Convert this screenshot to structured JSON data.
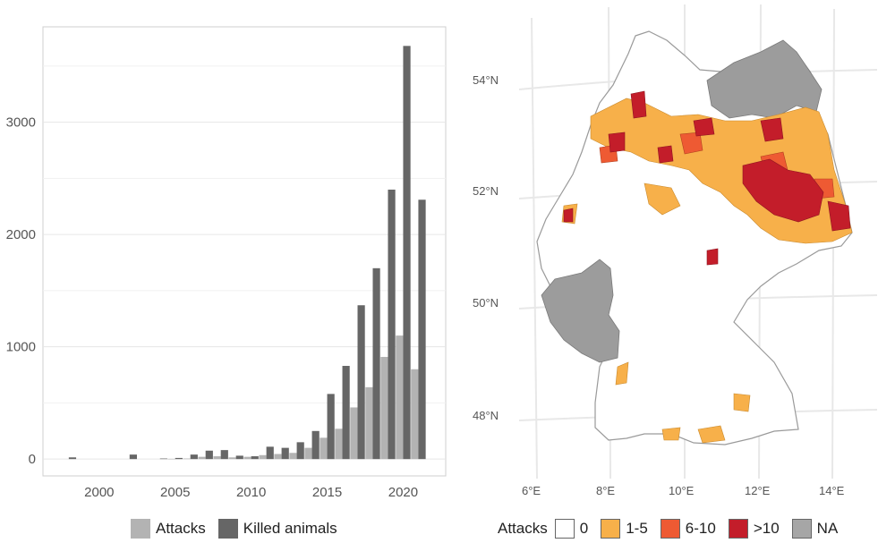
{
  "chart_data": [
    {
      "type": "bar",
      "title": "",
      "xlabel": "",
      "ylabel": "",
      "x": [
        1998,
        1999,
        2000,
        2001,
        2002,
        2003,
        2004,
        2005,
        2006,
        2007,
        2008,
        2009,
        2010,
        2011,
        2012,
        2013,
        2014,
        2015,
        2016,
        2017,
        2018,
        2019,
        2020,
        2021
      ],
      "xticks": [
        2000,
        2005,
        2010,
        2015,
        2020
      ],
      "yticks": [
        0,
        1000,
        2000,
        3000
      ],
      "ylim": [
        -150,
        3850
      ],
      "series": [
        {
          "name": "Attacks",
          "color": "#b3b3b3",
          "values": [
            0,
            0,
            0,
            0,
            0,
            0,
            0,
            2,
            5,
            20,
            25,
            15,
            20,
            35,
            45,
            55,
            100,
            190,
            270,
            460,
            640,
            910,
            1100,
            800
          ]
        },
        {
          "name": "Killed animals",
          "color": "#666666",
          "values": [
            15,
            0,
            0,
            0,
            40,
            0,
            5,
            10,
            40,
            75,
            80,
            30,
            25,
            110,
            100,
            150,
            250,
            580,
            830,
            1370,
            1700,
            2400,
            3680,
            2310
          ]
        }
      ],
      "legend_position": "bottom",
      "grid": true
    },
    {
      "type": "map",
      "xticks": [
        "6°E",
        "8°E",
        "10°E",
        "12°E",
        "14°E"
      ],
      "yticks": [
        "54°N",
        "52°N",
        "50°N",
        "48°N"
      ],
      "legend": {
        "title": "Attacks",
        "entries": [
          {
            "label": "0",
            "color": "#ffffff"
          },
          {
            "label": "1-5",
            "color": "#f7b04a"
          },
          {
            "label": "6-10",
            "color": "#ee5a33"
          },
          {
            "label": ">10",
            "color": "#c31d2a"
          },
          {
            "label": "NA",
            "color": "#a6a6a6"
          }
        ],
        "position": "bottom"
      }
    }
  ]
}
